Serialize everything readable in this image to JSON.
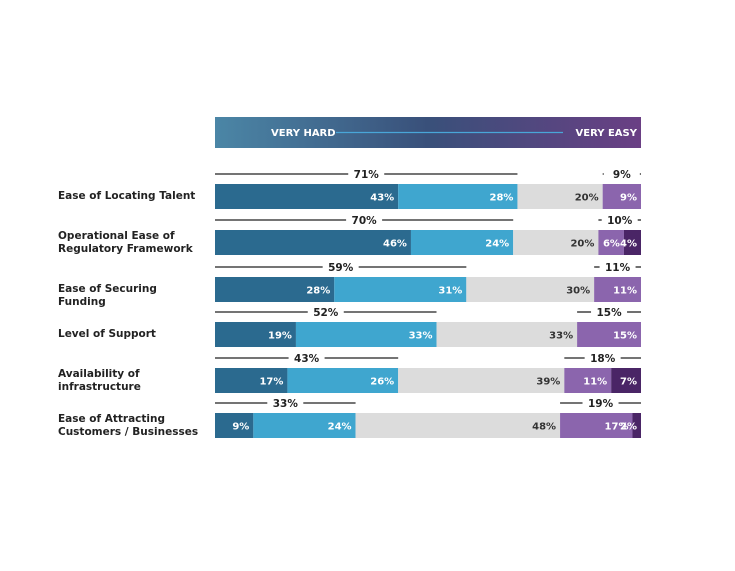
{
  "header": {
    "left_label": "VERY HARD",
    "right_label": "VERY EASY"
  },
  "colors": {
    "very_hard": "#2b6a8f",
    "hard": "#3fa6cf",
    "neutral": "#dcdcdc",
    "easy": "#8b65ad",
    "very_easy": "#4a2566",
    "header_gradient": [
      "#4b86a6",
      "#39507a",
      "#6a3f84"
    ]
  },
  "chart_data": {
    "type": "bar",
    "orientation": "horizontal",
    "stacked": true,
    "categories": [
      "Ease of Locating Talent",
      "Operational Ease of\nRegulatory Framework",
      "Ease of Securing Funding",
      " Level of Support",
      "Availability of\ninfrastructure",
      "Ease of Attracting\nCustomers / Businesses"
    ],
    "series": [
      {
        "values": [
          43,
          46,
          28,
          19,
          17,
          9
        ]
      },
      {
        "values": [
          28,
          24,
          31,
          33,
          26,
          24
        ]
      },
      {
        "values": [
          20,
          20,
          30,
          33,
          39,
          48
        ]
      },
      {
        "values": [
          9,
          6,
          11,
          15,
          11,
          17
        ]
      },
      {
        "values": [
          0,
          4,
          0,
          0,
          7,
          2
        ]
      }
    ],
    "hard_totals": [
      "71%",
      "70%",
      "59%",
      "52%",
      "43%",
      "33%"
    ],
    "easy_totals": [
      "9%",
      "10%",
      "11%",
      "15%",
      "18%",
      "19%"
    ],
    "xlim": [
      0,
      100
    ]
  }
}
